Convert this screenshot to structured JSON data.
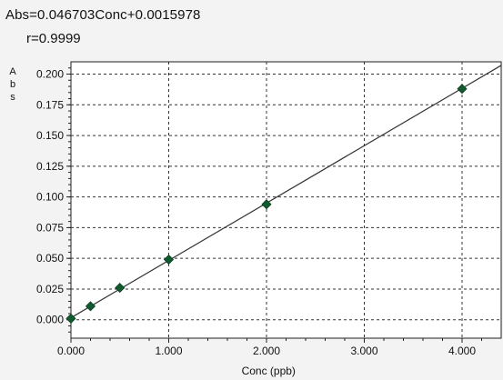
{
  "equation": "Abs=0.046703Conc+0.0015978",
  "r_value": "r=0.9999",
  "chart_data": {
    "type": "scatter",
    "title": "",
    "xlabel": "Conc (ppb)",
    "ylabel": "Abs",
    "xlim": [
      0,
      4.4
    ],
    "ylim": [
      -0.015,
      0.21
    ],
    "x_ticks": [
      0,
      1,
      2,
      3,
      4
    ],
    "x_tick_labels": [
      "0.000",
      "1.000",
      "2.000",
      "3.000",
      "4.000"
    ],
    "y_ticks": [
      0,
      0.025,
      0.05,
      0.075,
      0.1,
      0.125,
      0.15,
      0.175,
      0.2
    ],
    "y_tick_labels": [
      "0.000",
      "0.025",
      "0.050",
      "0.075",
      "0.100",
      "0.125",
      "0.150",
      "0.175",
      "0.200"
    ],
    "grid": true,
    "series": [
      {
        "x": [
          0,
          0.2,
          0.5,
          1.0,
          2.0,
          4.0
        ],
        "y": [
          0.001,
          0.011,
          0.026,
          0.049,
          0.094,
          0.188
        ],
        "marker": "diamond",
        "color": "#0f5a2e"
      }
    ],
    "fit_line": {
      "slope": 0.046703,
      "intercept": 0.0015978,
      "color": "#333333"
    }
  }
}
